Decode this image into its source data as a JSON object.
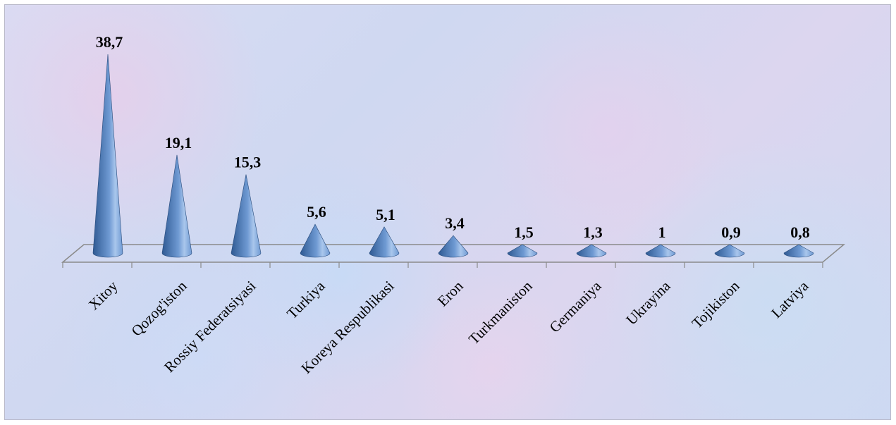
{
  "chart_data": {
    "type": "bar",
    "bar_shape": "cone",
    "categories": [
      "Xitoy",
      "Qozog'iston",
      "Rossiy Federatsiyasi",
      "Turkiya",
      "Koreya Respublikasi",
      "Eron",
      "Turkmaniston",
      "Germaniya",
      "Ukrayina",
      "Tojikiston",
      "Latviya"
    ],
    "values": [
      38.7,
      19.1,
      15.3,
      5.6,
      5.1,
      3.4,
      1.5,
      1.3,
      1,
      0.9,
      0.8
    ],
    "value_labels": [
      "38,7",
      "19,1",
      "15,3",
      "5,6",
      "5,1",
      "3,4",
      "1,5",
      "1,3",
      "1",
      "0,9",
      "0,8"
    ],
    "title": "",
    "xlabel": "",
    "ylabel": "",
    "ylim": [
      0,
      38.7
    ],
    "grid": false,
    "legend": "none",
    "colors": {
      "cone_dark": "#2f5a93",
      "cone_mid": "#6f9ad3",
      "cone_light": "#a9c6ec",
      "floor_edge": "#8a8a8a"
    }
  }
}
